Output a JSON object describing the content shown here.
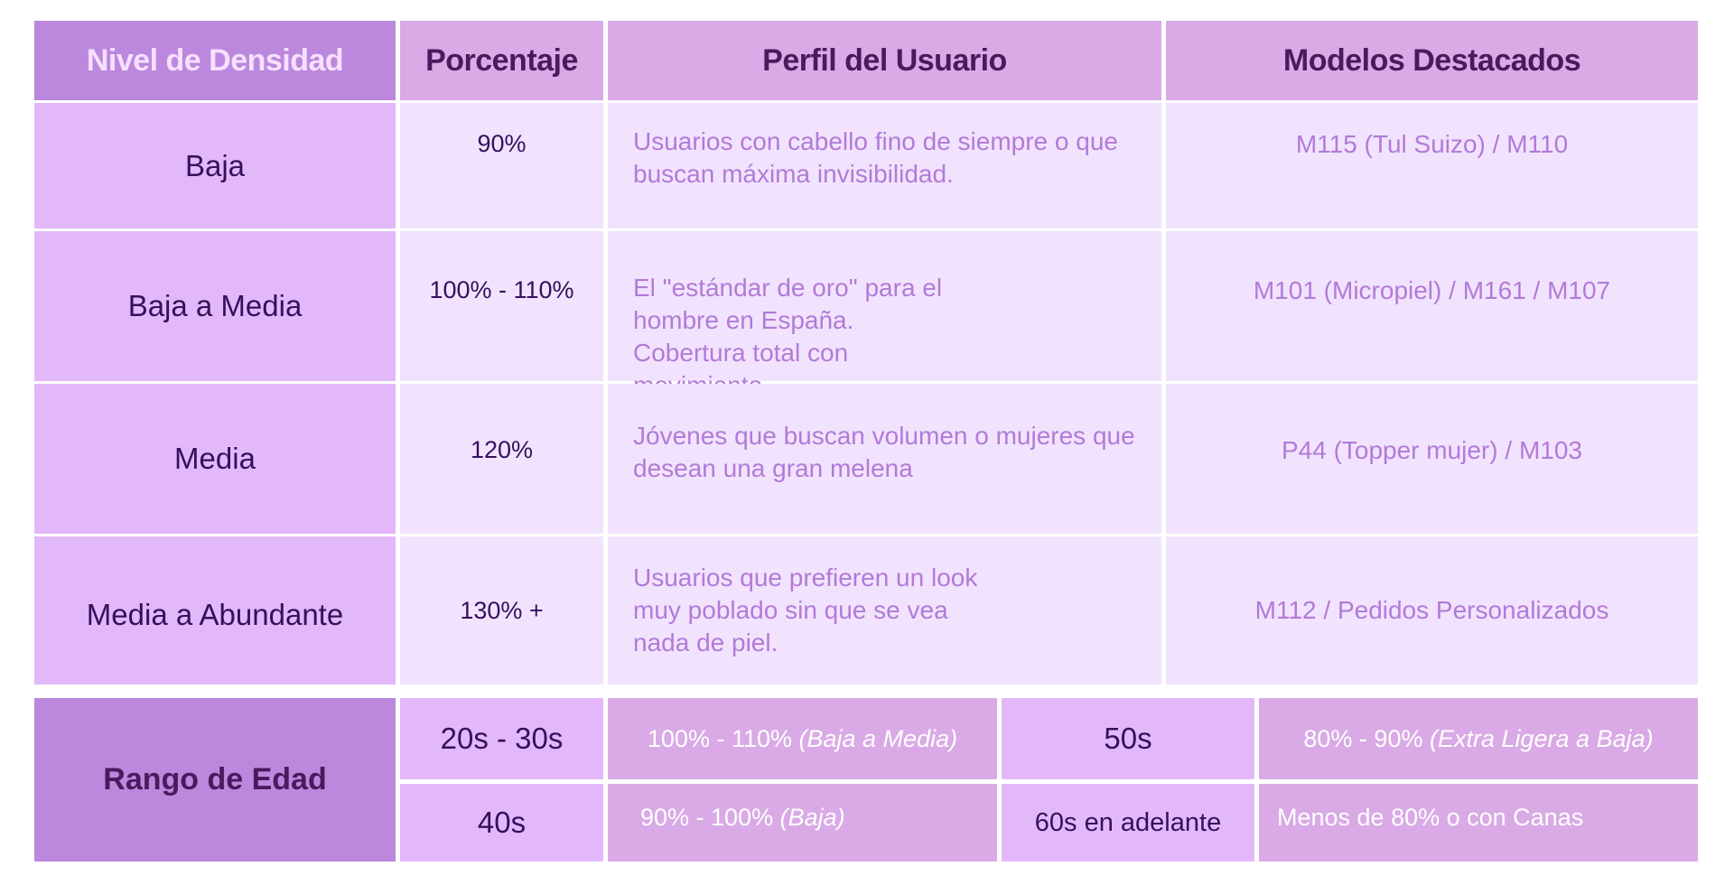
{
  "table": {
    "headers": [
      "Nivel de Densidad",
      "Porcentaje",
      "Perfil del Usuario",
      "Modelos Destacados"
    ],
    "rows": [
      {
        "nivel": "Baja",
        "porcentaje": "90%",
        "perfil": "Usuarios con cabello fino de siempre o que buscan máxima invisibilidad.",
        "modelos": "M115 (Tul Suizo) / M110"
      },
      {
        "nivel": "Baja a Media",
        "porcentaje": "100% - 110%",
        "perfil": "El \"estándar de oro\" para el hombre en España. Cobertura total con movimiento.",
        "modelos": "M101 (Micropiel) / M161 / M107"
      },
      {
        "nivel": "Media",
        "porcentaje": "120%",
        "perfil": "Jóvenes que buscan volumen o mujeres que desean una gran melena",
        "modelos": "P44 (Topper mujer) / M103"
      },
      {
        "nivel": "Media a Abundante",
        "porcentaje": "130% +",
        "perfil": "Usuarios que prefieren un look muy poblado sin que se vea nada de piel.",
        "modelos": "M112 / Pedidos Personalizados"
      }
    ]
  },
  "age": {
    "label": "Rango de Edad",
    "items": [
      {
        "age": "20s - 30s",
        "value": "100% - 110%",
        "note": "(Baja a Media)"
      },
      {
        "age": "50s",
        "value": "80% - 90%",
        "note": "(Extra Ligera a Baja)"
      },
      {
        "age": "40s",
        "value": "90% - 100%",
        "note": "(Baja)"
      },
      {
        "age": "60s en adelante",
        "value": "Menos de 80% o con Canas",
        "note": ""
      }
    ]
  }
}
